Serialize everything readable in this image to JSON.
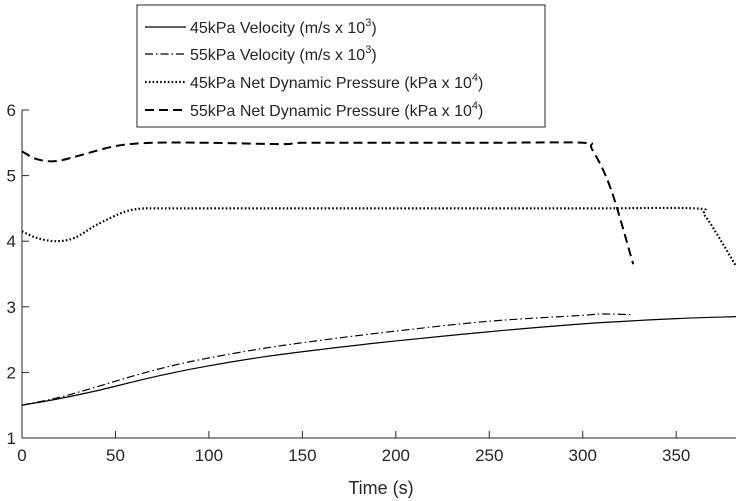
{
  "chart_data": {
    "type": "line",
    "title": "",
    "xlabel": "Time (s)",
    "ylabel": "",
    "xlim": [
      0,
      382
    ],
    "ylim": [
      1,
      6
    ],
    "xticks": [
      0,
      50,
      100,
      150,
      200,
      250,
      300,
      350
    ],
    "yticks": [
      1,
      2,
      3,
      4,
      5,
      6
    ],
    "grid": false,
    "legend_position": "top-center",
    "series": [
      {
        "name": "45kPa Velocity (m/s x 10^3)",
        "label_main": "45kPa Velocity (m/s x 10",
        "label_sup": "3",
        "label_end": ")",
        "style": "solid",
        "color": "#000000",
        "x": [
          0,
          20,
          40,
          60,
          80,
          100,
          130,
          160,
          200,
          250,
          300,
          350,
          382
        ],
        "y": [
          1.5,
          1.6,
          1.72,
          1.86,
          1.99,
          2.1,
          2.24,
          2.35,
          2.48,
          2.62,
          2.74,
          2.82,
          2.85
        ]
      },
      {
        "name": "55kPa Velocity (m/s x 10^3)",
        "label_main": "55kPa Velocity (m/s x 10",
        "label_sup": "3",
        "label_end": ")",
        "style": "dashdot",
        "color": "#000000",
        "x": [
          0,
          20,
          40,
          60,
          80,
          100,
          130,
          160,
          200,
          250,
          300,
          310,
          327
        ],
        "y": [
          1.5,
          1.62,
          1.78,
          1.95,
          2.1,
          2.22,
          2.37,
          2.49,
          2.63,
          2.78,
          2.87,
          2.89,
          2.88
        ]
      },
      {
        "name": "45kPa Net Dynamic Pressure (kPa x 10^4)",
        "label_main": "45kPa Net Dynamic Pressure (kPa x 10",
        "label_sup": "4",
        "label_end": ")",
        "style": "dotted",
        "color": "#000000",
        "x": [
          0,
          8,
          18,
          28,
          40,
          55,
          65,
          70,
          100,
          200,
          300,
          360,
          365,
          372,
          382
        ],
        "y": [
          4.15,
          4.05,
          4.0,
          4.05,
          4.25,
          4.45,
          4.5,
          4.5,
          4.5,
          4.5,
          4.5,
          4.5,
          4.4,
          4.1,
          3.62
        ]
      },
      {
        "name": "55kPa Net Dynamic Pressure (kPa x 10^4)",
        "label_main": "55kPa Net Dynamic Pressure (kPa x 10",
        "label_sup": "4",
        "label_end": ")",
        "style": "dashed",
        "color": "#000000",
        "x": [
          0,
          8,
          18,
          30,
          50,
          70,
          100,
          140,
          150,
          200,
          250,
          300,
          305,
          315,
          327
        ],
        "y": [
          5.37,
          5.25,
          5.22,
          5.3,
          5.45,
          5.5,
          5.5,
          5.48,
          5.5,
          5.5,
          5.5,
          5.5,
          5.4,
          4.8,
          3.65
        ]
      }
    ]
  }
}
